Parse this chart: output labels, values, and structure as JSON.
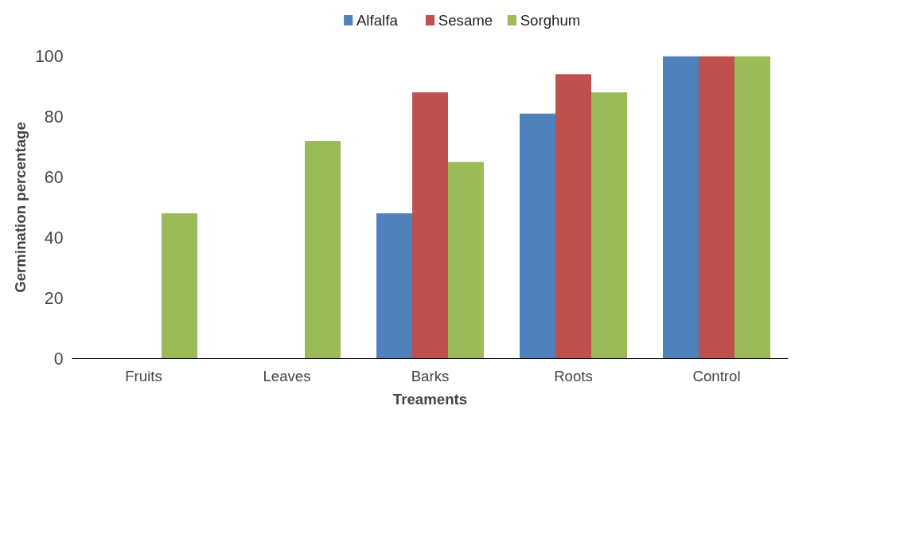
{
  "chart_data": {
    "type": "bar",
    "xlabel": "Treaments",
    "ylabel": "Germination percentage",
    "categories": [
      "Fruits",
      "Leaves",
      "Barks",
      "Roots",
      "Control"
    ],
    "series": [
      {
        "name": "Alfalfa",
        "color": "#4f81bd",
        "values": [
          0,
          0,
          48,
          81,
          100
        ]
      },
      {
        "name": "Sesame",
        "color": "#c0504d",
        "values": [
          0,
          0,
          88,
          94,
          100
        ]
      },
      {
        "name": "Sorghum",
        "color": "#9bbb59",
        "values": [
          48,
          72,
          65,
          88,
          100
        ]
      }
    ],
    "ylim": [
      0,
      100
    ],
    "yticks": [
      0,
      20,
      40,
      60,
      80,
      100
    ],
    "grid": false,
    "legend": "top"
  }
}
